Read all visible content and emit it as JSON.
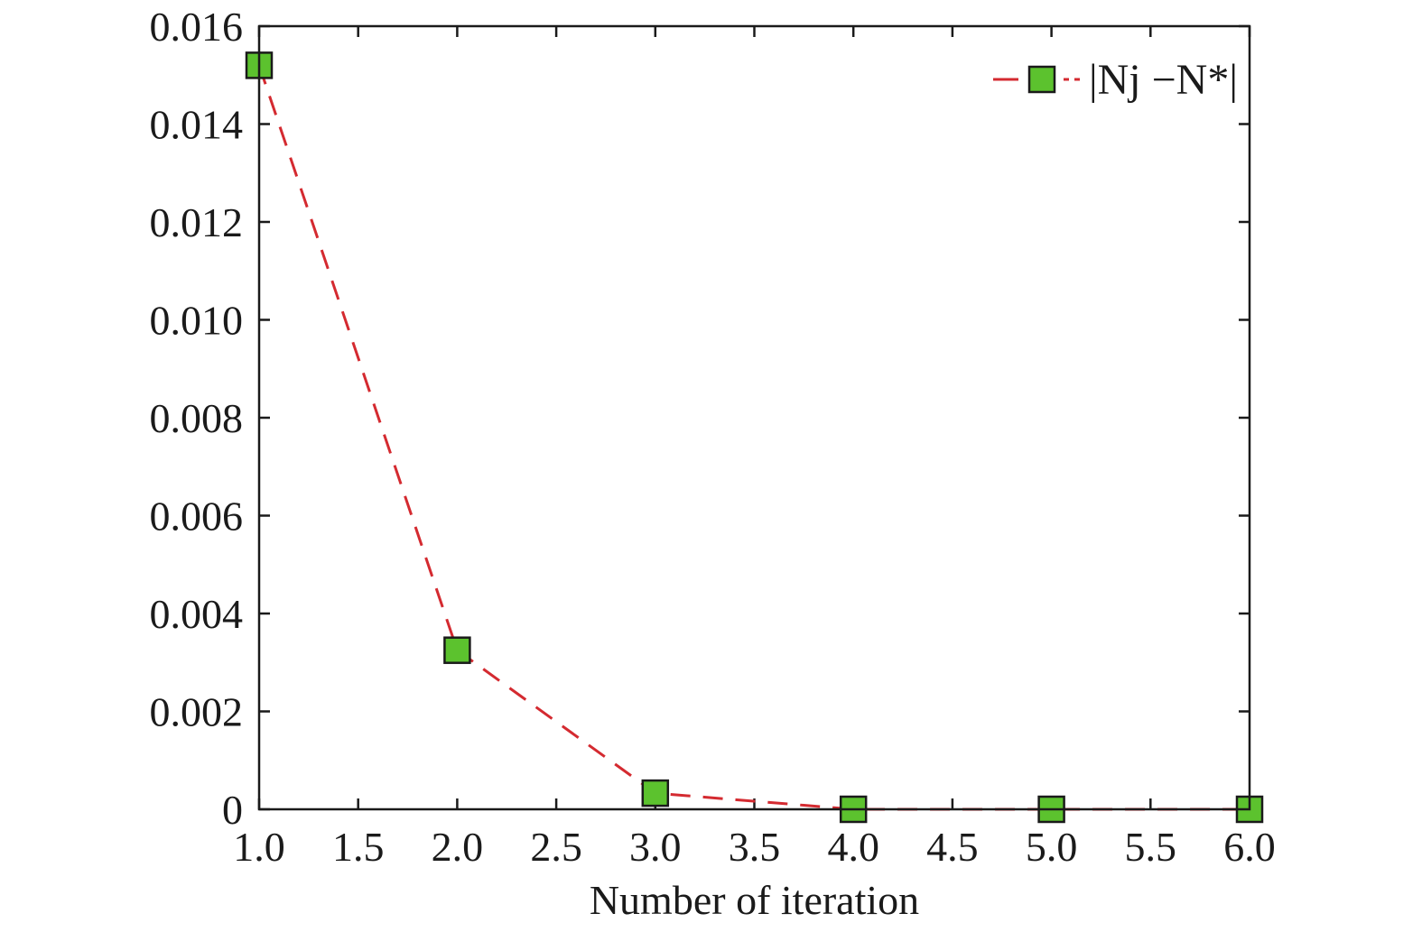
{
  "chart_data": {
    "type": "line",
    "xlabel": "Number of iteration",
    "ylabel": "",
    "xlim": [
      1.0,
      6.0
    ],
    "ylim": [
      0,
      0.016
    ],
    "x_ticks": [
      1.0,
      1.5,
      2.0,
      2.5,
      3.0,
      3.5,
      4.0,
      4.5,
      5.0,
      5.5,
      6.0
    ],
    "x_tick_labels": [
      "1.0",
      "1.5",
      "2.0",
      "2.5",
      "3.0",
      "3.5",
      "4.0",
      "4.5",
      "5.0",
      "5.5",
      "6.0"
    ],
    "y_ticks": [
      0,
      0.002,
      0.004,
      0.006,
      0.008,
      0.01,
      0.012,
      0.014,
      0.016
    ],
    "y_tick_labels": [
      "0",
      "0.002",
      "0.004",
      "0.006",
      "0.008",
      "0.010",
      "0.012",
      "0.014",
      "0.016"
    ],
    "grid": false,
    "legend_position": "top-right",
    "series": [
      {
        "name": "|Nj −N*|",
        "line_style": "dashed",
        "marker": "square",
        "line_color": "#d42a30",
        "marker_color": "#5cc22e",
        "x": [
          1,
          2,
          3,
          4,
          5,
          6
        ],
        "y": [
          0.0152,
          0.00325,
          0.00033,
          0.0,
          0.0,
          0.0
        ]
      }
    ]
  }
}
